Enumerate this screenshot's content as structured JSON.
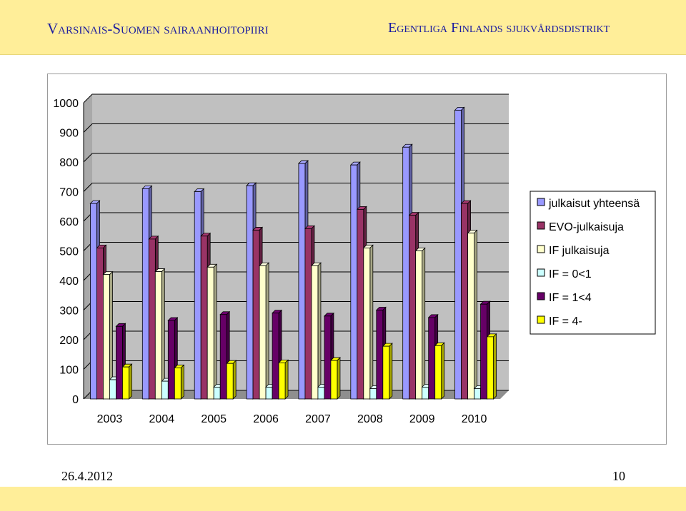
{
  "header": {
    "left_title": "Varsinais-Suomen sairaanhoitopiiri",
    "right_title": "Egentliga Finlands sjukvårdsdistrikt"
  },
  "footer": {
    "date": "26.4.2012",
    "page_number": "10"
  },
  "colors": {
    "header_band": "#ffee99",
    "header_text": "#1c1ca0",
    "plot_wall": "#c0c0c0"
  },
  "chart_data": {
    "type": "bar",
    "title": "",
    "xlabel": "",
    "ylabel": "",
    "ylim": [
      0,
      1000
    ],
    "yticks": [
      0,
      100,
      200,
      300,
      400,
      500,
      600,
      700,
      800,
      900,
      1000
    ],
    "grid": true,
    "legend_position": "right",
    "categories": [
      "2003",
      "2004",
      "2005",
      "2006",
      "2007",
      "2008",
      "2009",
      "2010"
    ],
    "series": [
      {
        "name": "julkaisut yhteensä",
        "color": "#9999ff",
        "values": [
          660,
          710,
          700,
          720,
          795,
          790,
          850,
          975
        ]
      },
      {
        "name": "EVO-julkaisuja",
        "color": "#993366",
        "values": [
          510,
          540,
          550,
          570,
          575,
          640,
          620,
          660
        ]
      },
      {
        "name": "IF julkaisuja",
        "color": "#ffffcc",
        "values": [
          420,
          430,
          445,
          450,
          450,
          510,
          500,
          560
        ]
      },
      {
        "name": "IF = 0<1",
        "color": "#ccffff",
        "values": [
          65,
          60,
          40,
          40,
          40,
          35,
          40,
          35
        ]
      },
      {
        "name": "IF = 1<4",
        "color": "#660066",
        "values": [
          245,
          265,
          285,
          290,
          280,
          300,
          275,
          320
        ]
      },
      {
        "name": "IF = 4-",
        "color": "#ffff00",
        "values": [
          108,
          105,
          120,
          122,
          130,
          178,
          180,
          210
        ]
      }
    ]
  }
}
